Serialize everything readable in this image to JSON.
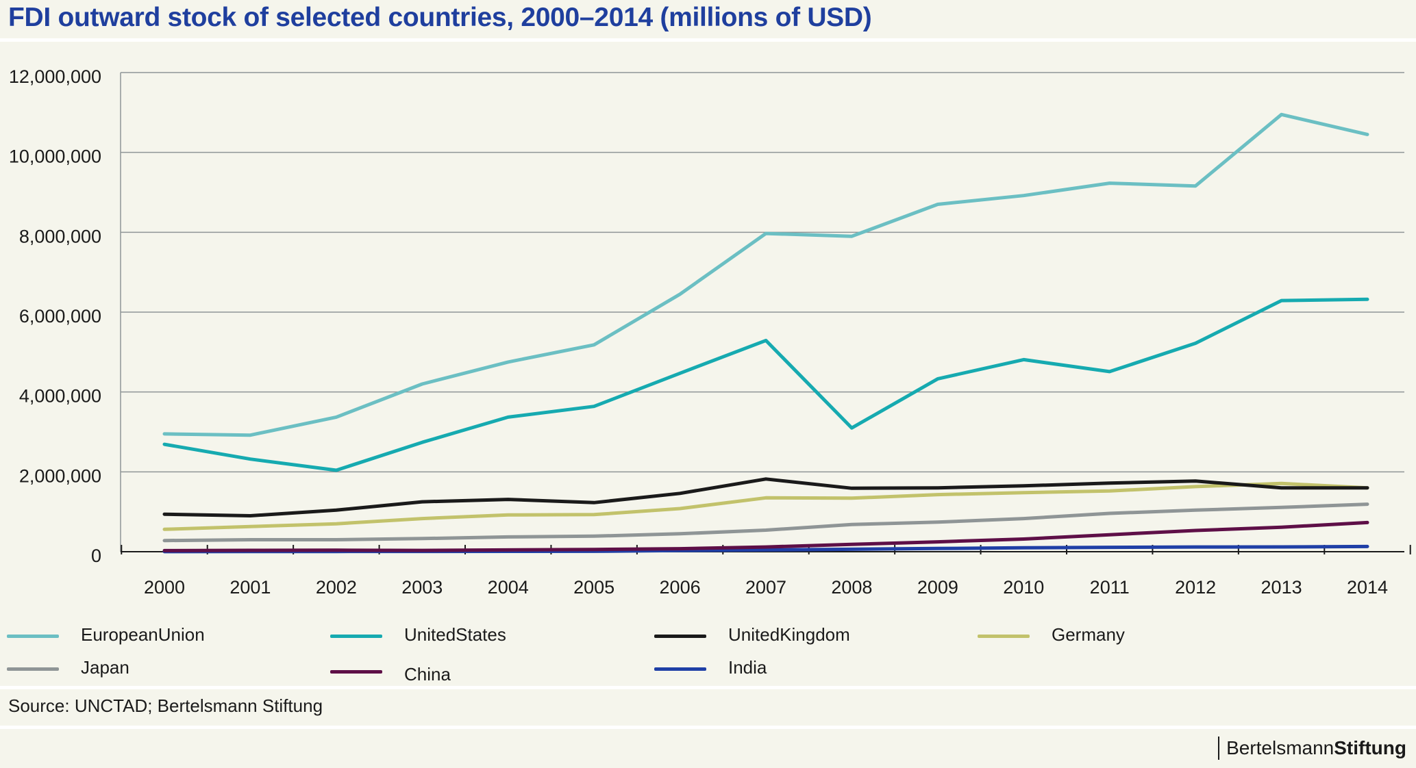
{
  "title": "FDI outward stock of selected countries, 2000–2014 (millions of USD)",
  "source": "Source: UNCTAD; Bertelsmann Stiftung",
  "brand": {
    "part1": "Bertelsmann",
    "part2": "Stiftung"
  },
  "colors": {
    "background": "#f5f5ec",
    "title": "#1f3f9e",
    "grid": "#8f9596",
    "axis": "#1a1a1a"
  },
  "chart_data": {
    "type": "line",
    "title": "FDI outward stock of selected countries, 2000–2014 (millions of USD)",
    "xlabel": "",
    "ylabel": "",
    "ylim": [
      0,
      12000000
    ],
    "grid": true,
    "legend_position": "bottom",
    "x": [
      "2000",
      "2001",
      "2002",
      "2003",
      "2004",
      "2005",
      "2006",
      "2007",
      "2008",
      "2009",
      "2010",
      "2011",
      "2012",
      "2013",
      "2014"
    ],
    "yticks": [
      0,
      2000000,
      4000000,
      6000000,
      8000000,
      10000000,
      12000000
    ],
    "ytick_labels": [
      "0",
      "2,000,000",
      "4,000,000",
      "6,000,000",
      "8,000,000",
      "10,000,000",
      "12,000,000"
    ],
    "series": [
      {
        "name": "EuropeanUnion",
        "color": "#6bbfc3",
        "values": [
          2950000,
          2920000,
          3370000,
          4200000,
          4750000,
          5180000,
          6450000,
          7970000,
          7900000,
          8700000,
          8920000,
          9230000,
          9160000,
          10950000,
          10450000
        ]
      },
      {
        "name": "UnitedStates",
        "color": "#16aab0",
        "values": [
          2690000,
          2320000,
          2040000,
          2740000,
          3370000,
          3640000,
          4470000,
          5290000,
          3100000,
          4330000,
          4810000,
          4510000,
          5220000,
          6290000,
          6320000
        ]
      },
      {
        "name": "UnitedKingdom",
        "color": "#1a1a1a",
        "values": [
          940000,
          900000,
          1040000,
          1250000,
          1310000,
          1230000,
          1460000,
          1820000,
          1590000,
          1600000,
          1650000,
          1720000,
          1770000,
          1600000,
          1600000
        ]
      },
      {
        "name": "Germany",
        "color": "#c2c26b",
        "values": [
          560000,
          630000,
          700000,
          830000,
          920000,
          930000,
          1080000,
          1350000,
          1340000,
          1430000,
          1480000,
          1520000,
          1630000,
          1710000,
          1600000
        ]
      },
      {
        "name": "Japan",
        "color": "#8f9596",
        "values": [
          280000,
          300000,
          300000,
          330000,
          370000,
          390000,
          450000,
          540000,
          680000,
          740000,
          830000,
          960000,
          1040000,
          1110000,
          1190000
        ]
      },
      {
        "name": "China",
        "color": "#5e0f47",
        "values": [
          28000,
          35000,
          37000,
          33000,
          45000,
          57000,
          75000,
          118000,
          184000,
          246000,
          318000,
          425000,
          532000,
          614000,
          730000
        ]
      },
      {
        "name": "India",
        "color": "#1f3fa6",
        "values": [
          2000,
          3000,
          5000,
          6000,
          8000,
          10000,
          30000,
          45000,
          62000,
          80000,
          97000,
          110000,
          118000,
          120000,
          130000
        ]
      }
    ]
  }
}
